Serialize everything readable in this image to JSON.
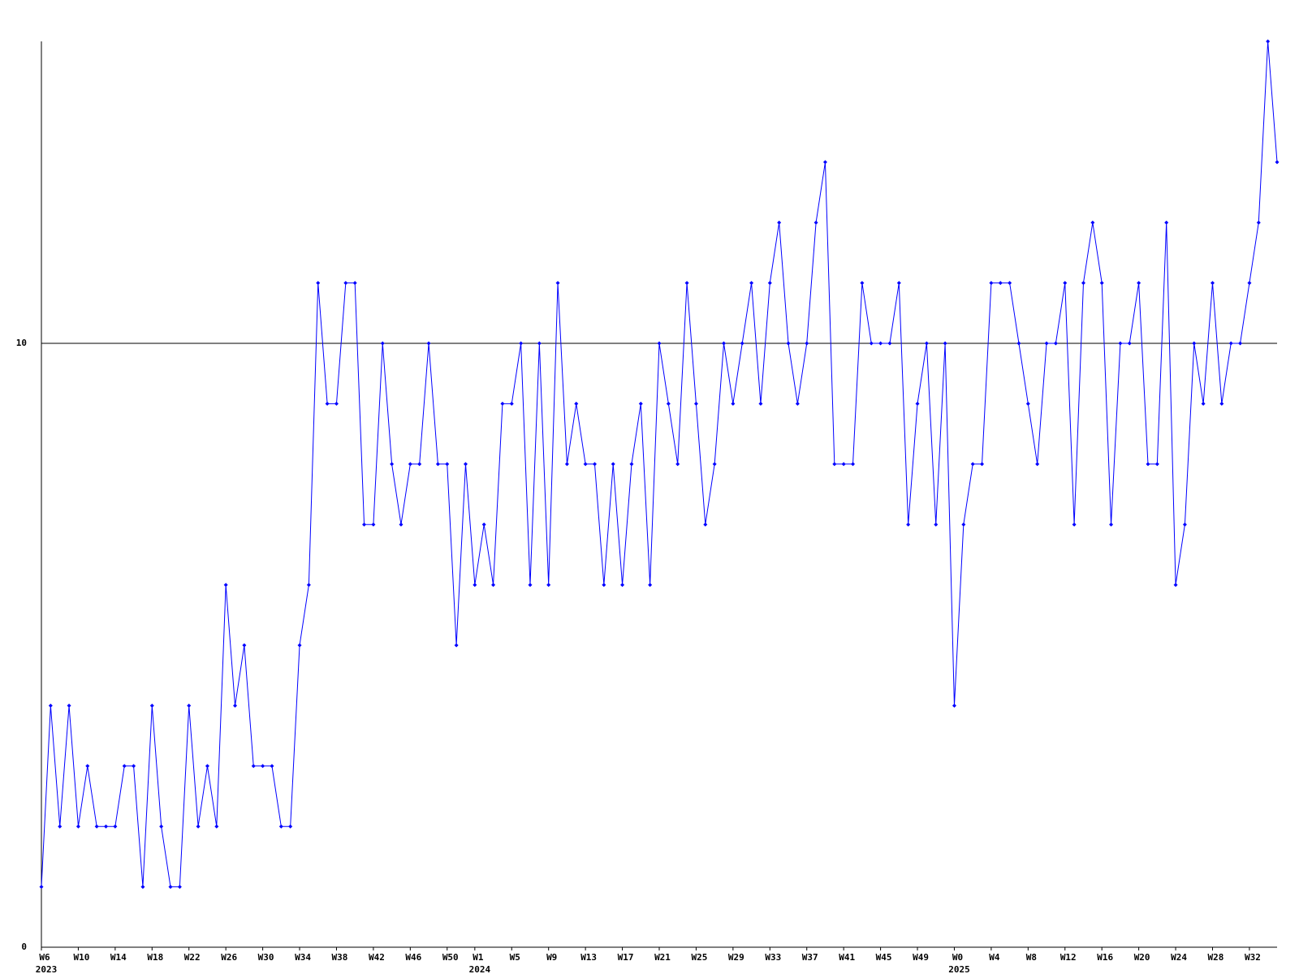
{
  "chart_data": {
    "type": "line",
    "color": "#0000ff",
    "grid": true,
    "ylim": [
      0,
      15
    ],
    "yticks": [
      0,
      10
    ],
    "categories": [
      "W6",
      null,
      null,
      null,
      "W10",
      null,
      null,
      null,
      "W14",
      null,
      null,
      null,
      "W18",
      null,
      null,
      null,
      "W22",
      null,
      null,
      null,
      "W26",
      null,
      null,
      null,
      "W30",
      null,
      null,
      null,
      "W34",
      null,
      null,
      null,
      "W38",
      null,
      null,
      null,
      "W42",
      null,
      null,
      null,
      "W46",
      null,
      null,
      null,
      "W50",
      null,
      null,
      "W1",
      null,
      null,
      null,
      "W5",
      null,
      null,
      null,
      "W9",
      null,
      null,
      null,
      "W13",
      null,
      null,
      null,
      "W17",
      null,
      null,
      null,
      "W21",
      null,
      null,
      null,
      "W25",
      null,
      null,
      null,
      "W29",
      null,
      null,
      null,
      "W33",
      null,
      null,
      null,
      "W37",
      null,
      null,
      null,
      "W41",
      null,
      null,
      null,
      "W45",
      null,
      null,
      null,
      "W49",
      null,
      null,
      null,
      "W0",
      null,
      null,
      null,
      "W4",
      null,
      null,
      null,
      "W8",
      null,
      null,
      null,
      "W12",
      null,
      null,
      null,
      "W16",
      null,
      null,
      null,
      "W20",
      null,
      null,
      null,
      "W24",
      null,
      null,
      null,
      "W28",
      null,
      null,
      null,
      "W32",
      null,
      null,
      null
    ],
    "years": [
      "2023",
      null,
      null,
      null,
      null,
      null,
      null,
      null,
      null,
      null,
      null,
      null,
      null,
      null,
      null,
      null,
      null,
      null,
      null,
      null,
      null,
      null,
      null,
      null,
      null,
      null,
      null,
      null,
      null,
      null,
      null,
      null,
      null,
      null,
      null,
      null,
      null,
      null,
      null,
      null,
      null,
      null,
      null,
      null,
      null,
      null,
      null,
      "2024",
      null,
      null,
      null,
      null,
      null,
      null,
      null,
      null,
      null,
      null,
      null,
      null,
      null,
      null,
      null,
      null,
      null,
      null,
      null,
      null,
      null,
      null,
      null,
      null,
      null,
      null,
      null,
      null,
      null,
      null,
      null,
      null,
      null,
      null,
      null,
      null,
      null,
      null,
      null,
      null,
      null,
      null,
      null,
      null,
      null,
      null,
      null,
      null,
      null,
      null,
      null,
      "2025",
      null,
      null,
      null,
      null,
      null,
      null,
      null,
      null,
      null,
      null,
      null,
      null,
      null,
      null,
      null,
      null,
      null,
      null,
      null,
      null,
      null,
      null,
      null,
      null,
      null,
      null,
      null,
      null,
      null,
      null,
      null,
      null,
      null,
      null,
      null
    ],
    "values": [
      1,
      4,
      2,
      4,
      2,
      3,
      2,
      2,
      2,
      3,
      3,
      1,
      4,
      2,
      1,
      1,
      4,
      2,
      3,
      2,
      6,
      4,
      5,
      3,
      3,
      3,
      2,
      2,
      5,
      6,
      11,
      9,
      9,
      11,
      11,
      7,
      7,
      10,
      8,
      7,
      8,
      8,
      10,
      8,
      8,
      5,
      8,
      6,
      7,
      6,
      9,
      9,
      10,
      6,
      10,
      6,
      11,
      8,
      9,
      8,
      8,
      6,
      8,
      6,
      8,
      9,
      6,
      10,
      9,
      8,
      11,
      9,
      7,
      8,
      10,
      9,
      10,
      11,
      9,
      11,
      12,
      10,
      9,
      10,
      12,
      13,
      8,
      8,
      8,
      11,
      10,
      10,
      10,
      11,
      7,
      9,
      10,
      7,
      10,
      4,
      7,
      8,
      8,
      11,
      11,
      11,
      10,
      9,
      8,
      10,
      10,
      11,
      7,
      11,
      12,
      11,
      7,
      10,
      10,
      11,
      8,
      8,
      12,
      6,
      7,
      10,
      9,
      11,
      9,
      10,
      10,
      11,
      12,
      15,
      13
    ]
  }
}
